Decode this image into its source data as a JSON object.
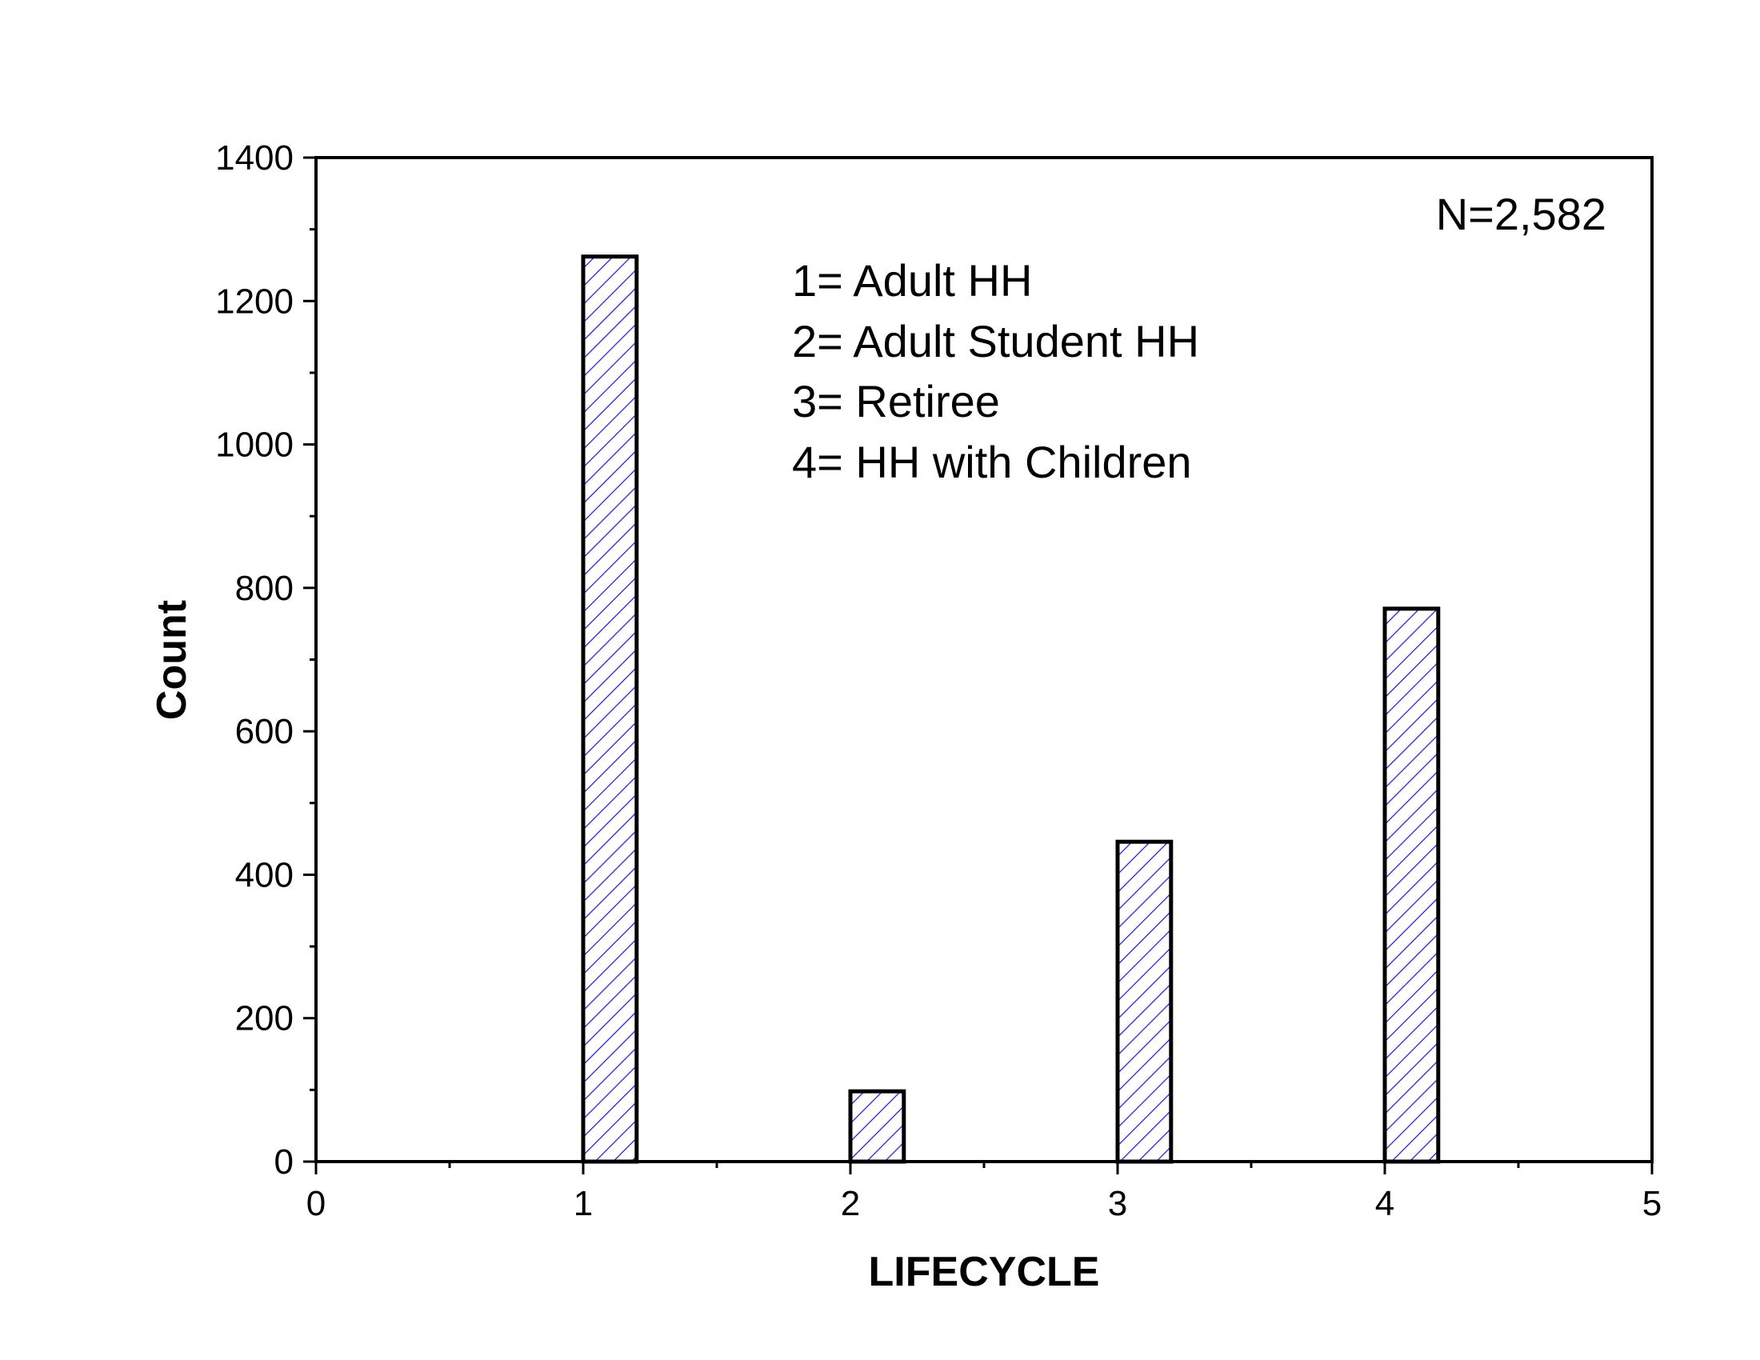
{
  "chart_data": {
    "type": "bar",
    "x": [
      1,
      2,
      3,
      4
    ],
    "values": [
      1262,
      98,
      446,
      771
    ],
    "xlabel": "LIFECYCLE",
    "ylabel": "Count",
    "xlim": [
      0,
      5
    ],
    "ylim": [
      0,
      1400
    ],
    "xticks": [
      "0",
      "1",
      "2",
      "3",
      "4",
      "5"
    ],
    "yticks": [
      "0",
      "200",
      "400",
      "600",
      "800",
      "1000",
      "1200",
      "1400"
    ],
    "annotation": "N=2,582",
    "legend_notes": [
      "1= Adult HH",
      "2= Adult Student HH",
      "3= Retiree",
      "4= HH with Children"
    ],
    "legend_position": "top-center",
    "bar_fill_pattern": "diagonal-hatch",
    "colors": {
      "hatch": "#1f1fd0",
      "outline": "#000000",
      "background": "#ffffff"
    },
    "grid": false
  }
}
